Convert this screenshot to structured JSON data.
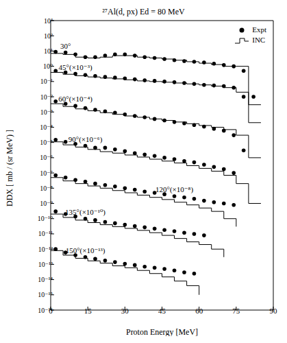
{
  "chart_data": {
    "type": "scatter",
    "title": "²⁷Al(d, px) Ed = 80 MeV",
    "x_label": "Proton Energy [MeV]",
    "y_label": "DDX [ mb / (sr MeV) ]",
    "log": "y",
    "grid": false,
    "legend": "upper right",
    "xlim": [
      0,
      90
    ],
    "xticks": [
      0,
      15,
      30,
      45,
      60,
      75,
      90
    ],
    "ylim": [
      1e-16,
      1000
    ],
    "yticks": [
      {
        "value": 1000,
        "label": "10³"
      },
      {
        "value": 100,
        "label": "10²"
      },
      {
        "value": 10,
        "label": "10¹"
      },
      {
        "value": 1,
        "label": "10⁰"
      },
      {
        "value": 0.1,
        "label": "10⁻¹"
      },
      {
        "value": 0.01,
        "label": "10⁻²"
      },
      {
        "value": 0.001,
        "label": "10⁻³"
      },
      {
        "value": 0.0001,
        "label": "10⁻⁴"
      },
      {
        "value": 1e-05,
        "label": "10⁻⁵"
      },
      {
        "value": 1e-06,
        "label": "10⁻⁶"
      },
      {
        "value": 1e-07,
        "label": "10⁻⁷"
      },
      {
        "value": 1e-08,
        "label": "10⁻⁸"
      },
      {
        "value": 1e-09,
        "label": "10⁻⁹"
      },
      {
        "value": 1e-10,
        "label": "10⁻¹⁰"
      },
      {
        "value": 1e-11,
        "label": "10⁻¹¹"
      },
      {
        "value": 1e-12,
        "label": "10⁻¹²"
      },
      {
        "value": 1e-13,
        "label": "10⁻¹³"
      },
      {
        "value": 1e-14,
        "label": "10⁻¹⁴"
      },
      {
        "value": 1e-15,
        "label": "10⁻¹⁵"
      },
      {
        "value": 1e-16,
        "label": "10⁻¹⁶"
      }
    ],
    "series": [
      {
        "name": "Expt",
        "type": "scatter",
        "marker": "circle",
        "color": "#000000"
      },
      {
        "name": "INC",
        "type": "line",
        "line_style": "step",
        "color": "#000000"
      }
    ],
    "x": [
      2,
      6,
      10,
      14,
      18,
      22,
      26,
      30,
      34,
      38,
      42,
      46,
      50,
      54,
      58,
      62,
      66,
      70,
      74,
      78,
      82
    ],
    "bins": [
      0,
      5,
      10,
      15,
      20,
      25,
      30,
      35,
      40,
      45,
      50,
      55,
      60,
      65,
      70,
      75,
      80,
      85
    ],
    "curves": [
      {
        "label": "30°",
        "expt": [
          9,
          8,
          6,
          4,
          4,
          5,
          6,
          6,
          5,
          4,
          3.5,
          3,
          2.5,
          2.2,
          2,
          1.8,
          1.5,
          1.2,
          1,
          0.5,
          0.01
        ],
        "inc": [
          7,
          6,
          4,
          3.5,
          4,
          5,
          5,
          4,
          3.5,
          3,
          2.5,
          2,
          1.6,
          1.3,
          1,
          1,
          0.003
        ]
      },
      {
        "label": "45°(×10⁻³)",
        "expt": [
          0.5,
          0.4,
          0.32,
          0.27,
          0.23,
          0.2,
          0.18,
          0.16,
          0.14,
          0.12,
          0.11,
          0.1,
          0.09,
          0.08,
          0.07,
          0.06,
          0.055,
          0.05,
          0.04,
          0.01,
          null
        ],
        "inc": [
          0.4,
          0.3,
          0.24,
          0.2,
          0.17,
          0.15,
          0.13,
          0.11,
          0.1,
          0.09,
          0.08,
          0.07,
          0.06,
          0.05,
          0.04,
          0.02,
          0.0002
        ]
      },
      {
        "label": "60°(×10⁻⁴)",
        "expt": [
          0.005,
          0.0035,
          0.0025,
          0.0018,
          0.0014,
          0.0011,
          0.0009,
          0.0007,
          0.00055,
          0.00045,
          0.00035,
          0.00028,
          0.00022,
          0.00018,
          0.00014,
          0.00011,
          8e-05,
          6e-05,
          3e-05,
          3e-06,
          null
        ],
        "inc": [
          0.0035,
          0.0023,
          0.0016,
          0.0012,
          0.0009,
          0.0007,
          0.00055,
          0.00045,
          0.00035,
          0.00028,
          0.00022,
          0.00017,
          0.00013,
          0.0001,
          7e-05,
          3e-05,
          1e-06
        ]
      },
      {
        "label": "90°(×10⁻⁶)",
        "expt": [
          1.5e-05,
          1.1e-05,
          8e-06,
          6e-06,
          4.5e-06,
          4.5e-06,
          3.5e-06,
          2.7e-06,
          2e-06,
          1.6e-06,
          1.3e-06,
          1e-06,
          8e-07,
          6e-07,
          5e-07,
          3.5e-07,
          2.5e-07,
          1.8e-07,
          1e-07,
          null,
          null
        ],
        "inc": [
          1.1e-05,
          7e-06,
          5e-06,
          3.5e-06,
          2.5e-06,
          2e-06,
          1.5e-06,
          1.1e-06,
          8e-07,
          6e-07,
          4.5e-07,
          3e-07,
          2e-07,
          1.3e-07,
          7e-08,
          2e-08,
          1e-09
        ]
      },
      {
        "label": "120°(×10⁻⁸)",
        "expt": [
          7e-08,
          5e-08,
          3.5e-08,
          2.7e-08,
          2e-08,
          1.6e-08,
          1.3e-08,
          1e-08,
          8e-09,
          6e-09,
          5e-09,
          4e-09,
          3e-09,
          2.5e-09,
          2e-09,
          1.5e-09,
          1.2e-09,
          1e-09,
          8e-10,
          null,
          null
        ],
        "inc": [
          5e-08,
          3e-08,
          2e-08,
          1.4e-08,
          1e-08,
          7e-09,
          5e-09,
          3.5e-09,
          2.5e-09,
          1.8e-09,
          1.2e-09,
          8e-10,
          5e-10,
          3e-10,
          1e-10,
          3e-11,
          null
        ]
      },
      {
        "label": "135°(×10⁻¹⁰)",
        "expt": [
          3e-10,
          2e-10,
          1.4e-10,
          1e-10,
          8e-11,
          6e-11,
          5e-11,
          4e-11,
          3.3e-11,
          2.7e-11,
          2.2e-11,
          1.8e-11,
          1.5e-11,
          1.2e-11,
          1e-11,
          8e-12,
          null,
          null,
          null,
          null,
          null
        ],
        "inc": [
          2e-10,
          1.2e-10,
          8e-11,
          5.5e-11,
          4e-11,
          3e-11,
          2.3e-11,
          1.7e-11,
          1.2e-11,
          8e-12,
          5e-12,
          3e-12,
          2e-12,
          1e-12,
          3e-13,
          null,
          null
        ]
      },
      {
        "label": "150°(×10⁻¹³)",
        "expt": [
          1e-12,
          6e-13,
          4e-13,
          3e-13,
          2.3e-13,
          1.8e-13,
          1.4e-13,
          1.1e-13,
          9e-14,
          7e-14,
          6e-14,
          5e-14,
          4e-14,
          3e-14,
          2.5e-14,
          null,
          null,
          null,
          null,
          null,
          null
        ],
        "inc": [
          8e-13,
          4e-13,
          2.5e-13,
          1.7e-13,
          1.2e-13,
          8e-14,
          6e-14,
          4e-14,
          2.5e-14,
          1.5e-14,
          8e-15,
          4e-15,
          1e-15,
          null,
          null,
          null,
          null
        ]
      }
    ]
  }
}
